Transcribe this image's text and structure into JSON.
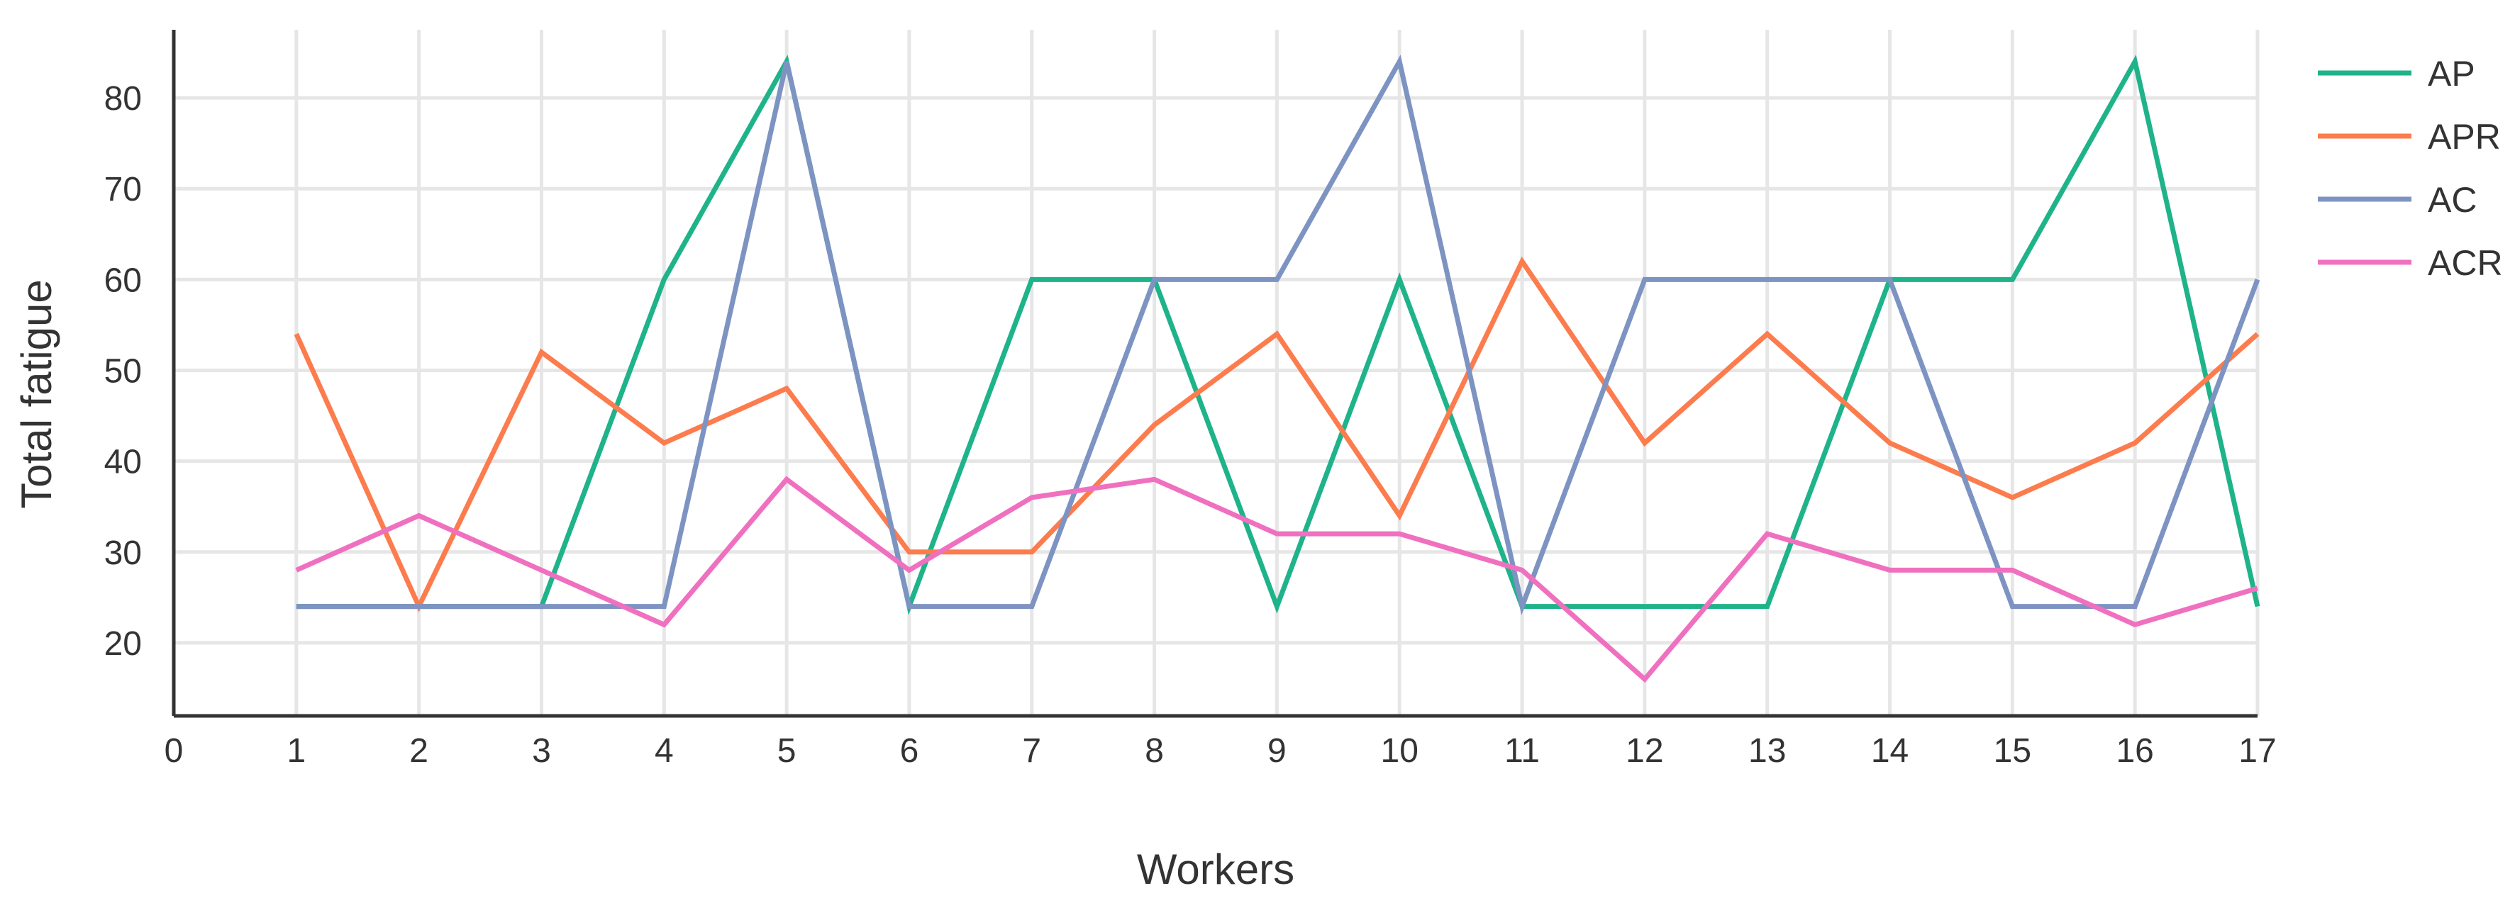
{
  "chart_data": {
    "type": "line",
    "title": "",
    "xlabel": "Workers",
    "ylabel": "Total fatigue",
    "x": [
      1,
      2,
      3,
      4,
      5,
      6,
      7,
      8,
      9,
      10,
      11,
      12,
      13,
      14,
      15,
      16,
      17
    ],
    "xlim": [
      0,
      17
    ],
    "ylim": [
      12.5,
      87.5
    ],
    "x_ticks": [
      "0",
      "1",
      "2",
      "3",
      "4",
      "5",
      "6",
      "7",
      "8",
      "9",
      "10",
      "11",
      "12",
      "13",
      "14",
      "15",
      "16",
      "17"
    ],
    "y_ticks": [
      "20",
      "30",
      "40",
      "50",
      "60",
      "70",
      "80"
    ],
    "grid": true,
    "legend_position": "top-right, outside plot",
    "series": [
      {
        "name": "AP",
        "color": "#1fb38a",
        "values": [
          24,
          24,
          24,
          60,
          84,
          24,
          60,
          60,
          24,
          60,
          24,
          24,
          24,
          60,
          60,
          84,
          24
        ]
      },
      {
        "name": "APR",
        "color": "#fc7c4e",
        "values": [
          54,
          24,
          52,
          42,
          48,
          30,
          30,
          44,
          54,
          34,
          62,
          42,
          54,
          42,
          36,
          42,
          54
        ]
      },
      {
        "name": "AC",
        "color": "#7d93c2",
        "values": [
          24,
          24,
          24,
          24,
          84,
          24,
          24,
          60,
          60,
          84,
          24,
          60,
          60,
          60,
          24,
          24,
          60
        ]
      },
      {
        "name": "ACR",
        "color": "#f070c0",
        "values": [
          28,
          34,
          28,
          22,
          38,
          28,
          36,
          38,
          32,
          32,
          28,
          16,
          32,
          28,
          28,
          22,
          26
        ]
      }
    ]
  }
}
